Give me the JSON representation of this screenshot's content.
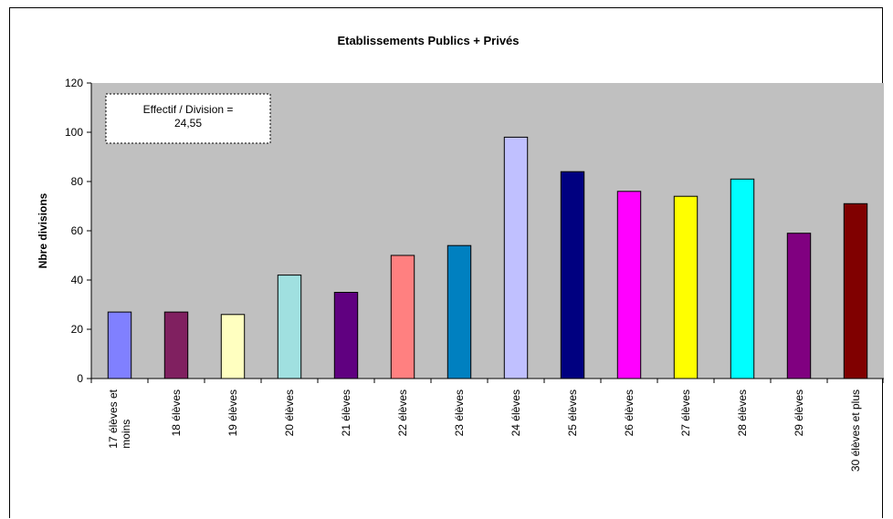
{
  "chart_data": {
    "type": "bar",
    "title": "Etablissements Publics + Privés",
    "xlabel": "",
    "ylabel": "Nbre divisions",
    "ylim": [
      0,
      120
    ],
    "yticks": [
      0,
      20,
      40,
      60,
      80,
      100,
      120
    ],
    "grid": false,
    "legend": "none",
    "plot_background": "#c0c0c0",
    "categories": [
      [
        "17 élèves et",
        "moins"
      ],
      [
        "18 élèves"
      ],
      [
        "19 élèves"
      ],
      [
        "20 élèves"
      ],
      [
        "21 élèves"
      ],
      [
        "22 élèves"
      ],
      [
        "23 élèves"
      ],
      [
        "24 élèves"
      ],
      [
        "25 élèves"
      ],
      [
        "26 élèves"
      ],
      [
        "27 élèves"
      ],
      [
        "28 élèves"
      ],
      [
        "29 élèves"
      ],
      [
        "30 élèves et plus"
      ]
    ],
    "values": [
      27,
      27,
      26,
      42,
      35,
      50,
      54,
      98,
      84,
      76,
      74,
      81,
      59,
      71
    ],
    "colors": [
      "#8080ff",
      "#802060",
      "#ffffc0",
      "#a0e0e0",
      "#600080",
      "#ff8080",
      "#0080c0",
      "#c0c0ff",
      "#000080",
      "#ff00ff",
      "#ffff00",
      "#00ffff",
      "#800080",
      "#800000"
    ],
    "annotation": [
      "Effectif / Division =",
      "24,55"
    ]
  }
}
